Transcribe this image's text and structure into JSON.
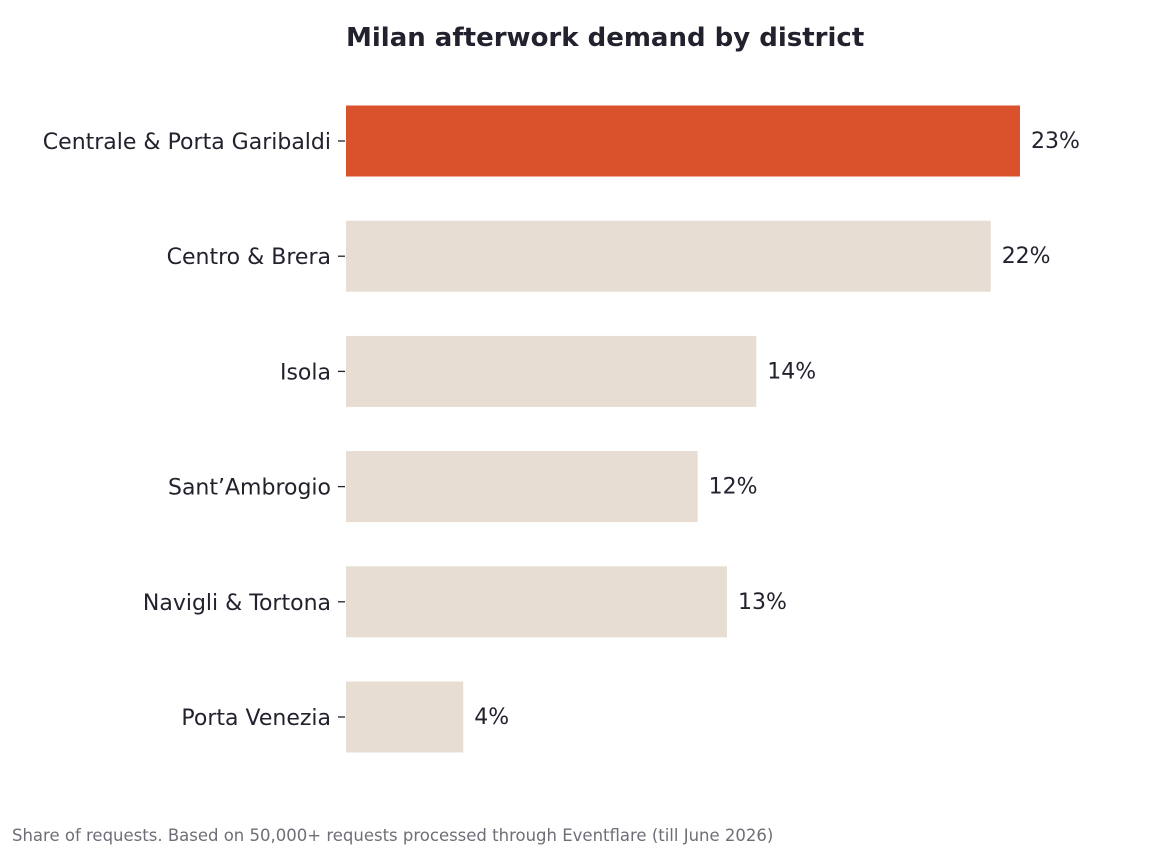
{
  "chart_data": {
    "type": "bar",
    "orientation": "horizontal",
    "title": "Milan afterwork demand by district",
    "categories": [
      "Centrale & Porta Garibaldi",
      "Centro & Brera",
      "Isola",
      "Sant’Ambrogio",
      "Navigli & Tortona",
      "Porta Venezia"
    ],
    "values": [
      23,
      22,
      14,
      12,
      13,
      4
    ],
    "value_labels": [
      "23%",
      "22%",
      "14%",
      "12%",
      "13%",
      "4%"
    ],
    "unit": "%",
    "xlim": [
      0,
      23
    ],
    "highlight_index": 0,
    "grid": false,
    "legend": "none",
    "xlabel": "",
    "ylabel": "",
    "footnote": "Share of requests. Based on 50,000+ requests processed through Eventflare (till June 2026)"
  },
  "colors": {
    "highlight": "#d9522b",
    "base": "#e7ddd3",
    "text": "#22222e",
    "muted": "#6e6e78",
    "tick": "#22222e"
  }
}
